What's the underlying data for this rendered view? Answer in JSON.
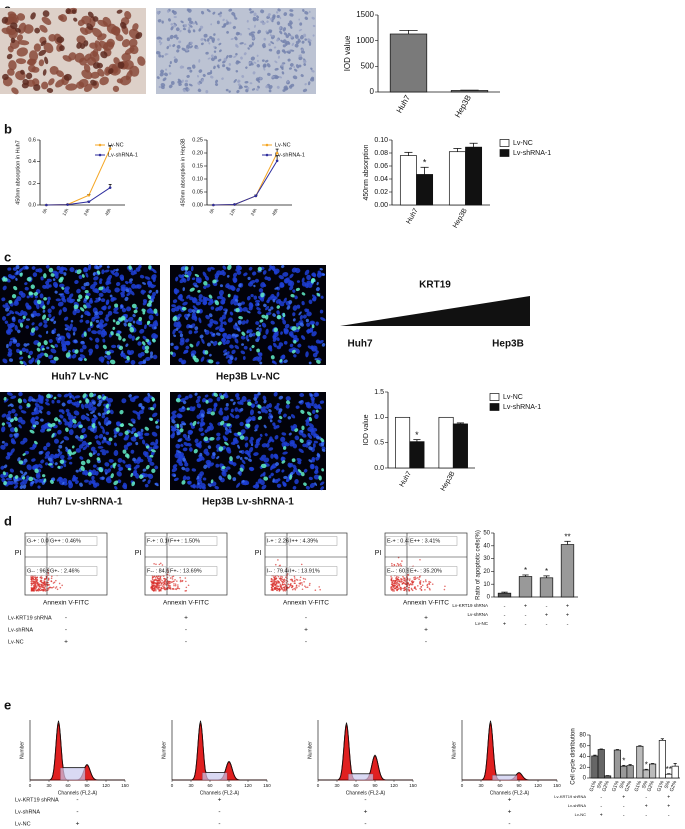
{
  "panel_labels": [
    "a",
    "b",
    "c",
    "d",
    "e"
  ],
  "conditions": [
    {
      "label": "Lv-KRT19 shRNA",
      "signs": [
        "-",
        "+",
        "-",
        "+"
      ]
    },
    {
      "label": "Lv-shRNA",
      "signs": [
        "-",
        "-",
        "+",
        "+"
      ]
    },
    {
      "label": "Lv-NC",
      "signs": [
        "+",
        "-",
        "-",
        "-"
      ]
    }
  ],
  "panel_c": {
    "captions": [
      "Huh7 Lv-NC",
      "Hep3B Lv-NC",
      "Huh7 Lv-shRNA-1",
      "Hep3B Lv-shRNA-1"
    ],
    "gradient": {
      "label": "KRT19",
      "left": "Huh7",
      "right": "Hep3B"
    }
  },
  "panel_d": {
    "x_label": "Annexin V-FITC",
    "y_label": "PI",
    "plots": [
      [
        "G-+ : 0.07%",
        "G++ : 0.46%",
        "G-- : 96.9%",
        "G+- : 2.46%"
      ],
      [
        "F-+ : 0.16%",
        "F++ : 1.50%",
        "F-- : 84.62%",
        "F+- : 13.69%"
      ],
      [
        "I-+ : 2.26%",
        "I++ : 4.39%",
        "I-- : 79.44%",
        "I+- : 13.91%"
      ],
      [
        "E-+ : 0.43%",
        "E++ : 3.41%",
        "E-- : 60.96%",
        "E+- : 35.20%"
      ]
    ]
  },
  "panel_e": {
    "x_label": "Channels (FL2-A)",
    "y_label": "Number",
    "xlim": [
      0,
      150
    ],
    "xticks": [
      0,
      30,
      60,
      90,
      120,
      150
    ]
  },
  "chart_data": [
    {
      "type": "bar",
      "ylabel": "IOD value",
      "categories": [
        "Huh7",
        "Hep3B"
      ],
      "series": [
        {
          "color": "#7a7a7a",
          "values": [
            1130,
            30
          ],
          "errors": [
            70,
            5
          ]
        }
      ],
      "ylim": [
        0,
        1500
      ],
      "yticks": [
        0,
        500,
        1000,
        1500
      ]
    },
    {
      "type": "line",
      "ylabel": "450nm absorption in Huh7",
      "categories": [
        "0h",
        "12h",
        "24h",
        "48h"
      ],
      "series": [
        {
          "name": "Lv-NC",
          "color": "#f5a623",
          "values": [
            0,
            0.005,
            0.09,
            0.52
          ],
          "errors": [
            0,
            0.002,
            0.008,
            0.03
          ]
        },
        {
          "name": "Lv-shRNA-1",
          "color": "#2e2e9e",
          "values": [
            0,
            0.004,
            0.03,
            0.16
          ],
          "errors": [
            0,
            0.002,
            0.005,
            0.03
          ]
        }
      ],
      "ylim": [
        0,
        0.6
      ],
      "yticks": [
        {
          "value": 0,
          "label": "0.0"
        },
        0.2,
        0.4,
        0.6
      ]
    },
    {
      "type": "line",
      "ylabel": "450nm absorption in Hep3B",
      "categories": [
        "0h",
        "12h",
        "24h",
        "48h"
      ],
      "series": [
        {
          "name": "Lv-NC",
          "color": "#f5a623",
          "values": [
            0,
            0.002,
            0.035,
            0.2
          ],
          "errors": [
            0,
            0.001,
            0.003,
            0.015
          ]
        },
        {
          "name": "Lv-shRNA-1",
          "color": "#2e2e9e",
          "values": [
            0,
            0.002,
            0.035,
            0.17
          ],
          "errors": [
            0,
            0.001,
            0.003,
            0.02
          ]
        }
      ],
      "ylim": [
        0,
        0.25
      ],
      "yticks": [
        {
          "value": 0,
          "label": "0.00"
        },
        0.05,
        {
          "value": 0.1,
          "label": "0.10"
        },
        0.15,
        {
          "value": 0.2,
          "label": "0.20"
        },
        0.25
      ]
    },
    {
      "type": "bar",
      "ylabel": "450nm absorption",
      "categories": [
        "Huh7",
        "Hep3B"
      ],
      "series": [
        {
          "name": "Lv-NC",
          "color": "#ffffff",
          "values": [
            0.076,
            0.082
          ],
          "errors": [
            0.005,
            0.005
          ]
        },
        {
          "name": "Lv-shRNA-1",
          "color": "#111111",
          "values": [
            0.047,
            0.089
          ],
          "errors": [
            0.011,
            0.006
          ],
          "significance": [
            "*",
            null
          ]
        }
      ],
      "ylim": [
        0,
        0.1
      ],
      "yticks": [
        {
          "value": 0,
          "label": "0.00"
        },
        0.02,
        0.04,
        0.06,
        0.08,
        {
          "value": 0.1,
          "label": "0.10"
        }
      ],
      "legend": true
    },
    {
      "type": "bar",
      "ylabel": "IOD value",
      "categories": [
        "Huh7",
        "Hep3B"
      ],
      "series": [
        {
          "name": "Lv-NC",
          "color": "#ffffff",
          "values": [
            1.0,
            1.0
          ]
        },
        {
          "name": "Lv-shRNA-1",
          "color": "#111111",
          "values": [
            0.52,
            0.87
          ],
          "errors": [
            0.04,
            0.02
          ],
          "significance": [
            "*",
            null
          ]
        }
      ],
      "ylim": [
        0,
        1.5
      ],
      "yticks": [
        {
          "value": 0,
          "label": "0.0"
        },
        0.5,
        {
          "value": 1,
          "label": "1.0"
        },
        1.5
      ],
      "legend": true
    },
    {
      "type": "bar",
      "ylabel": "Ratio of apoptotic cells(%)",
      "categories": [
        null,
        null,
        null,
        null
      ],
      "series": [
        {
          "colors": [
            "#555555",
            "#999999",
            "#999999",
            "#999999"
          ],
          "values": [
            3,
            16,
            15,
            41
          ],
          "errors": [
            0.8,
            1.2,
            1.5,
            2.5
          ],
          "significance": [
            null,
            "*",
            "*",
            "**"
          ]
        }
      ],
      "ylim": [
        0,
        50
      ],
      "yticks": [
        0,
        10,
        20,
        30,
        40,
        50
      ]
    },
    {
      "type": "bar",
      "ylabel": "Cell cycle distribution",
      "categories": [
        "G1%",
        "S%",
        "G2%"
      ],
      "series": [
        {
          "color": "#666666",
          "values": [
            41,
            53,
            4
          ],
          "errors": [
            1.5,
            1,
            0.5
          ]
        },
        {
          "color": "#999999",
          "values": [
            52,
            22,
            23
          ],
          "errors": [
            1,
            1.5,
            2
          ],
          "significance": [
            null,
            "*",
            null
          ]
        },
        {
          "color": "#bbbbbb",
          "values": [
            59,
            15,
            26
          ],
          "errors": [
            1,
            1.2,
            1
          ],
          "significance": [
            null,
            "*",
            null
          ]
        },
        {
          "color": "#ffffff",
          "values": [
            70,
            7,
            22
          ],
          "errors": [
            3,
            1,
            5
          ],
          "significance": [
            null,
            "**",
            null
          ]
        }
      ],
      "ylim": [
        0,
        80
      ],
      "yticks": [
        0,
        20,
        40,
        60,
        80
      ]
    }
  ]
}
